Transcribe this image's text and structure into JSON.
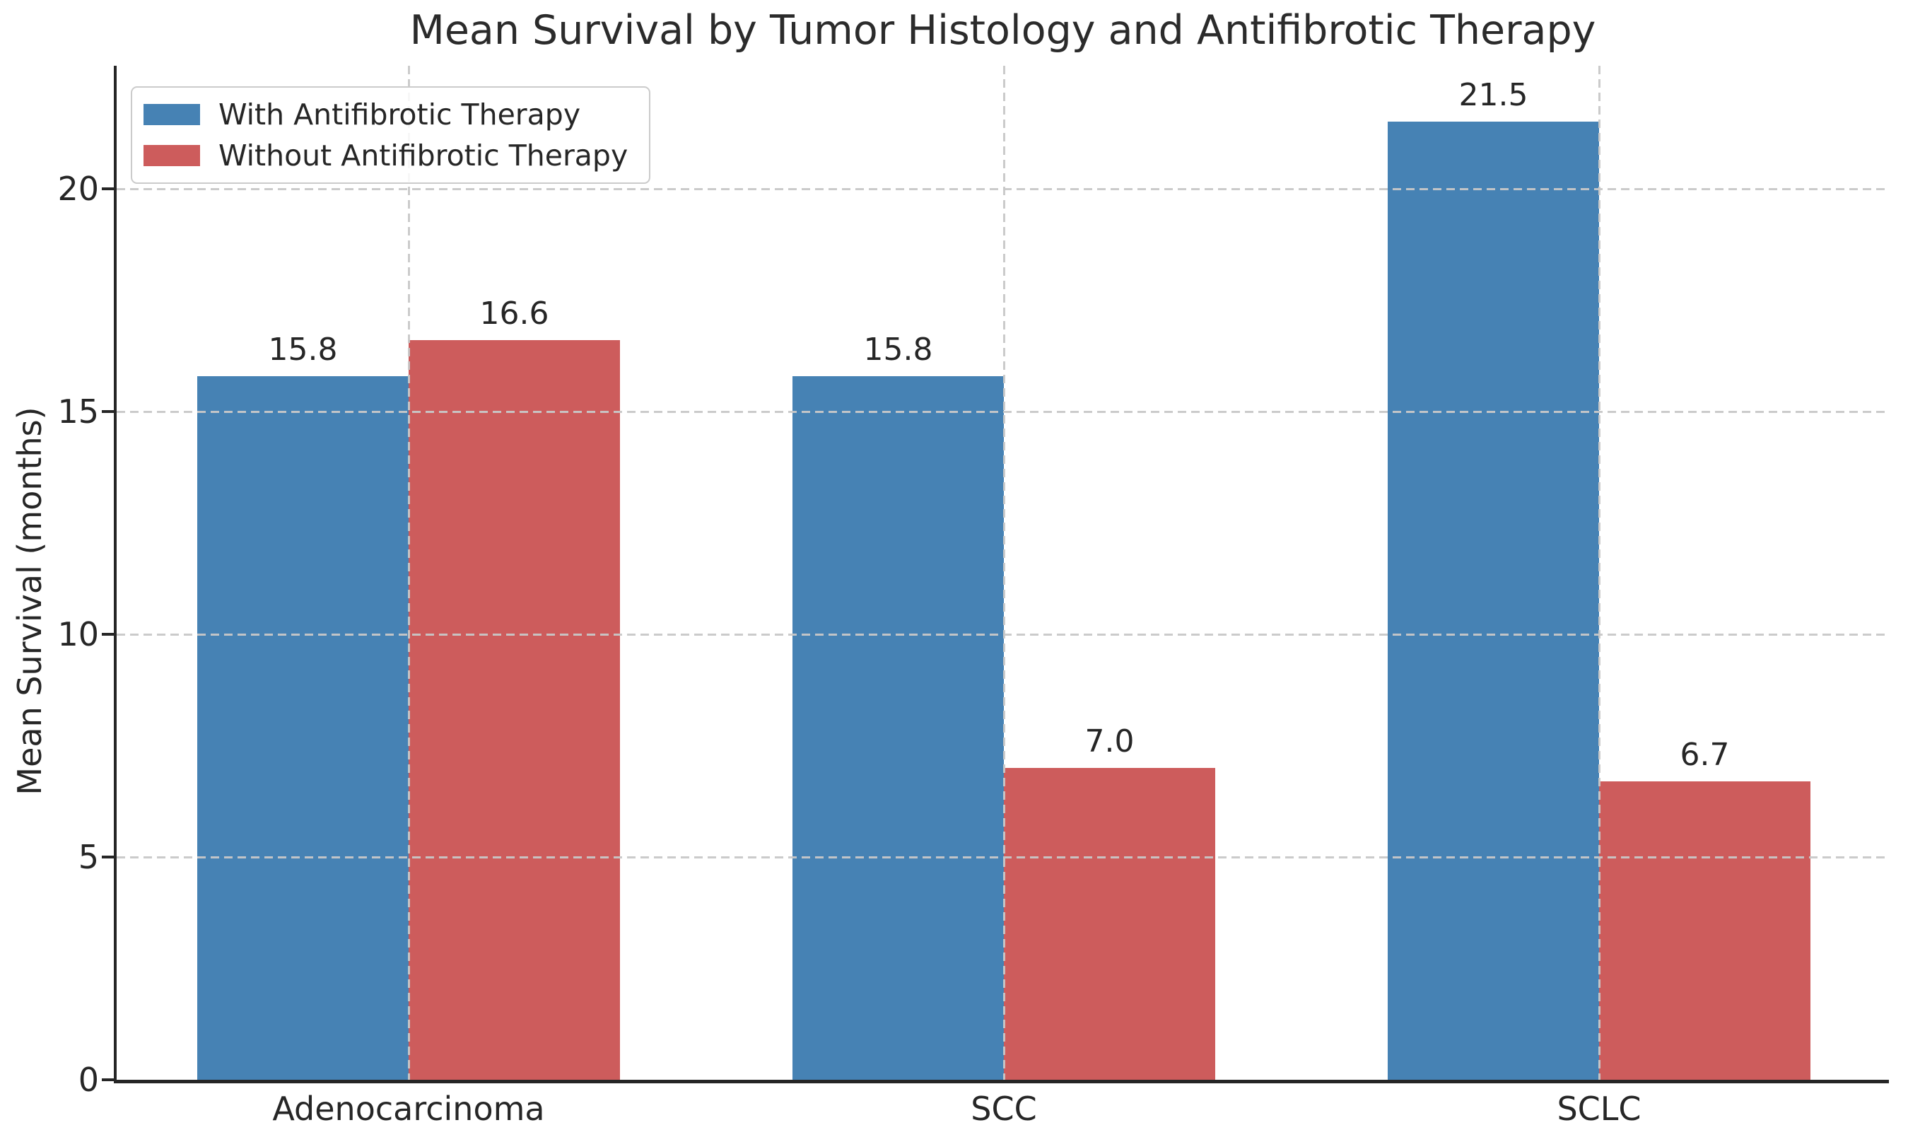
{
  "chart_data": {
    "type": "bar",
    "title": "Mean Survival by Tumor Histology and Antifibrotic Therapy",
    "xlabel": "",
    "ylabel": "Mean Survival (months)",
    "categories": [
      "Adenocarcinoma",
      "SCC",
      "SCLC"
    ],
    "series": [
      {
        "name": "With Antifibrotic Therapy",
        "color": "#4682B4",
        "values": [
          15.8,
          15.8,
          21.5
        ],
        "value_labels": [
          "15.8",
          "15.8",
          "21.5"
        ]
      },
      {
        "name": "Without Antifibrotic Therapy",
        "color": "#CD5C5C",
        "values": [
          16.6,
          7.0,
          6.7
        ],
        "value_labels": [
          "16.6",
          "7.0",
          "6.7"
        ]
      }
    ],
    "yticks": [
      0,
      5,
      10,
      15,
      20
    ],
    "ylim": [
      0,
      22.76
    ],
    "grid": "dashed gridlines on both axes, drawn above bars",
    "grid_color": "#c8c8c8",
    "legend_position": "upper left",
    "text_color": "#262626",
    "spine_color": "#262626",
    "background_color": "#ffffff"
  }
}
